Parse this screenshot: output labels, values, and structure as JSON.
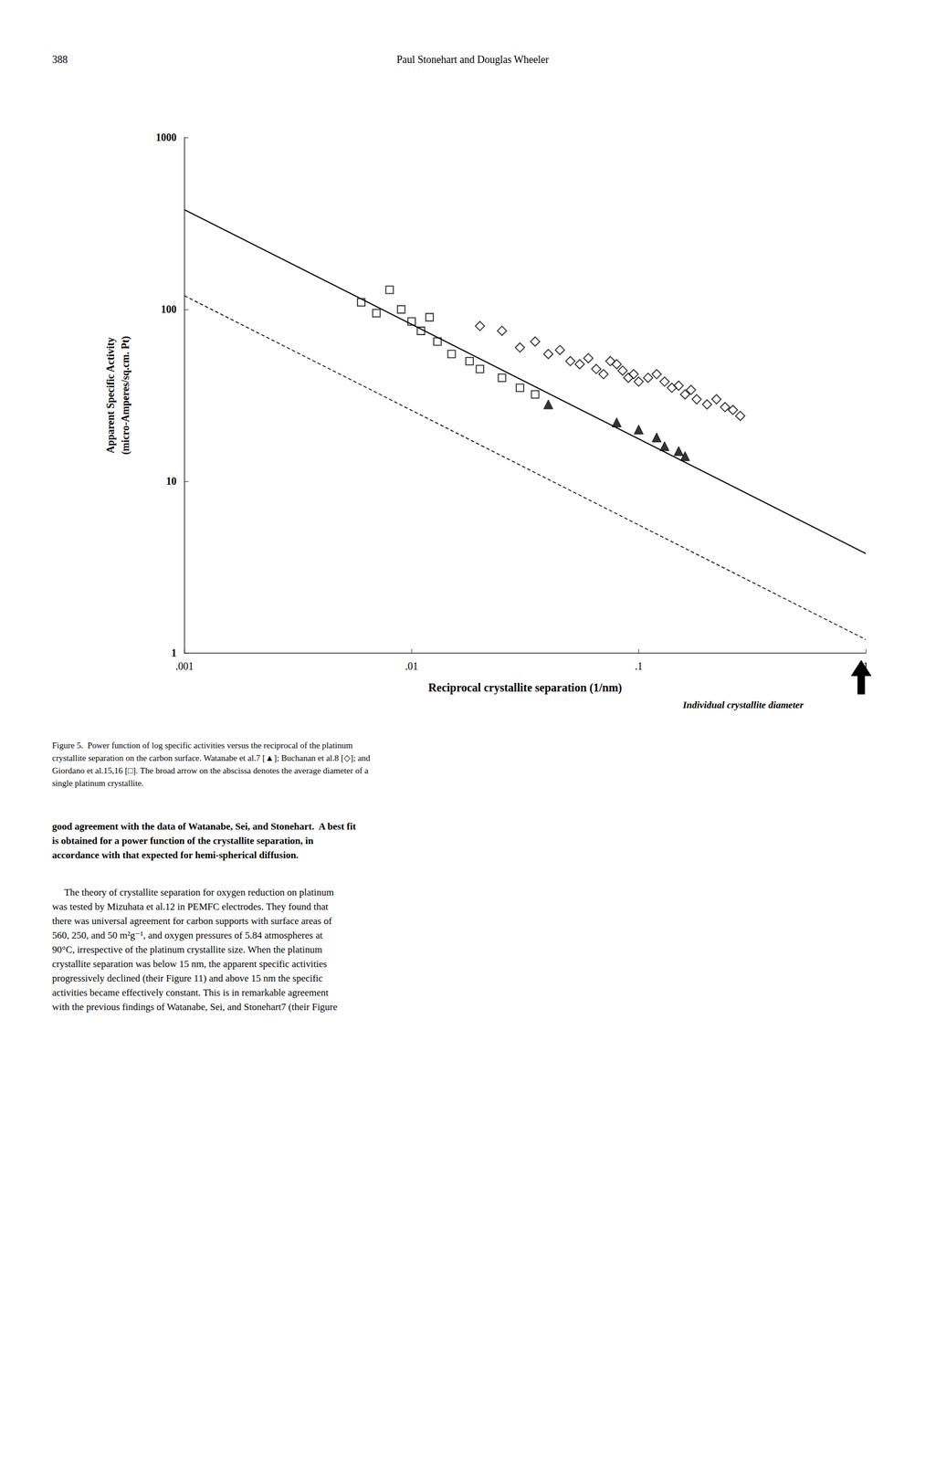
{
  "chart_data": {
    "type": "scatter",
    "header": [
      "388",
      "Paul Stonehart and Douglas Wheeler"
    ],
    "ylabel": "Apparent Specific Activity\n(micro-Amperes/sq.cm. Pt)",
    "xlabel": "Reciprocal crystallite separation (1/nm)",
    "annotations": [
      "Individual crystallite diameter"
    ],
    "caption": "Figure 5.  Power function of log specific activities versus the reciprocal of the platinum\ncrystallite separation on the carbon surface. Watanabe et al.7 [▲]; Buchanan et al.8 [◇]; and\nGiordano et al.15,16 [□]. The broad arrow on the abscissa denotes the average diameter of a\nsingle platinum crystallite.",
    "body_text": [
      "good agreement with the data of Watanabe, Sei, and Stonehart.  A best fit\nis obtained for a power function of the crystallite separation, in\naccordance with that expected for hemi-spherical diffusion.",
      "     The theory of crystallite separation for oxygen reduction on platinum\nwas tested by Mizuhata et al.12 in PEMFC electrodes. They found that\nthere was universal agreement for carbon supports with surface areas of\n560, 250, and 50 m²g⁻¹, and oxygen pressures of 5.84 atmospheres at\n90°C, irrespective of the platinum crystallite size. When the platinum\ncrystallite separation was below 15 nm, the apparent specific activities\nprogressively declined (their Figure 11) and above 15 nm the specific\nactivities became effectively constant. This is in remarkable agreement\nwith the previous findings of Watanabe, Sei, and Stonehart7 (their Figure"
    ],
    "log": true,
    "grid": false,
    "xlim": [
      0.001,
      1.0
    ],
    "xticks": [
      {
        "value": 0.001,
        "label": ".001"
      },
      {
        "value": 0.01,
        "label": ".01"
      },
      {
        "value": 0.1,
        "label": ".1"
      },
      1
    ],
    "ylim": [
      1,
      1000
    ],
    "yticks": [
      1,
      10,
      100,
      1000
    ],
    "series": [
      {
        "type": "line",
        "line_style": "solid",
        "color": "#000000",
        "x": [
          0.001,
          1.0
        ],
        "values": [
          380.0,
          3.8
        ]
      },
      {
        "type": "line",
        "line_style": "dashed",
        "color": "#000000",
        "x": [
          0.001,
          1.0
        ],
        "values": [
          120.0,
          1.2
        ]
      },
      {
        "type": "scatter",
        "marker": "open-square",
        "color": "#000000",
        "x": [
          0.006,
          0.007,
          0.008,
          0.009,
          0.01,
          0.011,
          0.012,
          0.013,
          0.015,
          0.018,
          0.02,
          0.025,
          0.03,
          0.035
        ],
        "values": [
          110,
          95,
          130,
          100,
          85,
          75,
          90,
          65,
          55,
          50,
          45,
          40,
          35,
          32
        ]
      },
      {
        "type": "scatter",
        "marker": "open-diamond",
        "color": "#000000",
        "x": [
          0.02,
          0.025,
          0.03,
          0.035,
          0.04,
          0.045,
          0.05,
          0.055,
          0.06,
          0.065,
          0.07,
          0.075,
          0.08,
          0.085,
          0.09,
          0.095,
          0.1,
          0.11,
          0.12,
          0.13,
          0.14,
          0.15,
          0.16,
          0.17,
          0.18,
          0.2,
          0.22,
          0.24,
          0.26,
          0.28
        ],
        "values": [
          80,
          75,
          60,
          65,
          55,
          58,
          50,
          48,
          52,
          45,
          42,
          50,
          48,
          44,
          40,
          42,
          38,
          40,
          42,
          38,
          35,
          36,
          32,
          34,
          30,
          28,
          30,
          27,
          26,
          24
        ]
      },
      {
        "type": "scatter",
        "marker": "filled-triangle",
        "color": "#000000",
        "x": [
          0.04,
          0.08,
          0.1,
          0.12,
          0.13,
          0.15,
          0.16
        ],
        "values": [
          28,
          22,
          20,
          18,
          16,
          15,
          14
        ]
      }
    ]
  }
}
